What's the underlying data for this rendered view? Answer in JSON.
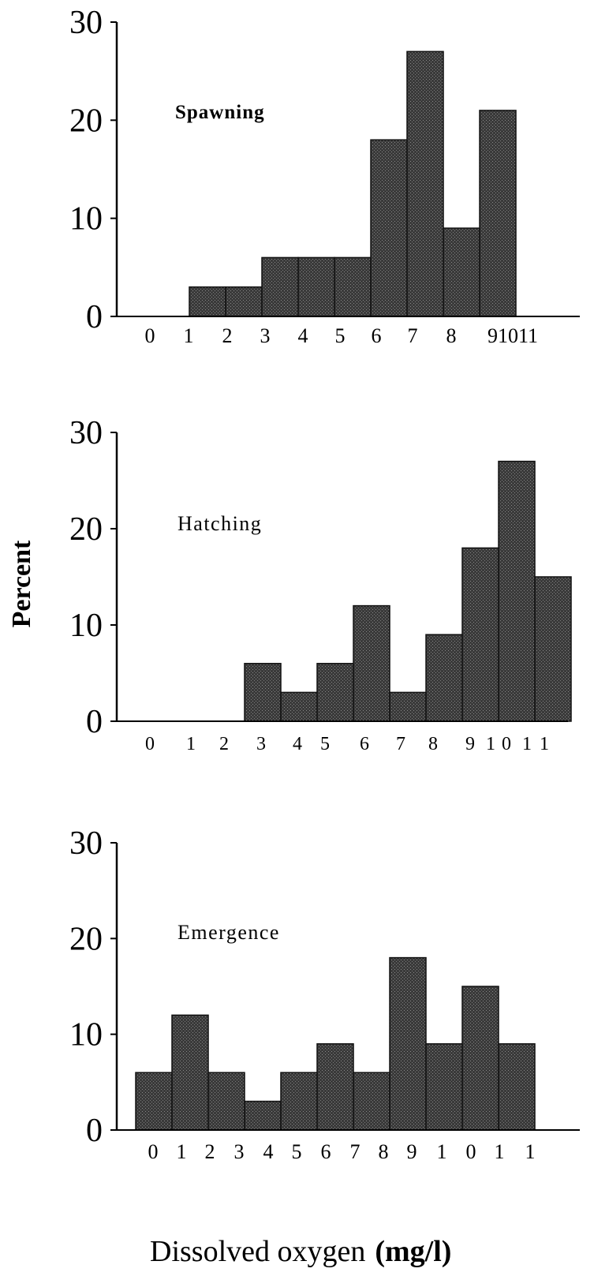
{
  "figure": {
    "ylabel": "Percent",
    "xlabel": "Dissolved oxygen",
    "xlabel_unit": "(mg/l)"
  },
  "colors": {
    "bar_fill": "#3a3a3a",
    "bar_stroke": "#111111",
    "axis": "#000000",
    "text": "#000000"
  },
  "chart_data": [
    {
      "type": "bar",
      "title": "Spawning",
      "categories": [
        "0",
        "1",
        "2",
        "3",
        "4",
        "5",
        "6",
        "7",
        "8",
        "9",
        "10",
        "11"
      ],
      "tick_labels": [
        "0",
        "1",
        "2",
        "3",
        "4",
        "5",
        "6",
        "7",
        "8",
        "91011"
      ],
      "values": [
        0,
        0,
        3,
        3,
        6,
        6,
        6,
        18,
        27,
        9,
        21,
        0
      ],
      "ylim": [
        0,
        30
      ],
      "yticks": [
        "0",
        "10",
        "20",
        "30"
      ]
    },
    {
      "type": "bar",
      "title": "Hatching",
      "categories": [
        "0",
        "1",
        "2",
        "3",
        "4",
        "5",
        "6",
        "7",
        "8",
        "9",
        "10",
        "11"
      ],
      "tick_labels": [
        "0",
        "1",
        "2",
        "3",
        "4",
        "5",
        "6",
        "7",
        "8",
        "9",
        "1",
        "0",
        "1",
        "1"
      ],
      "values": [
        0,
        0,
        0,
        6,
        3,
        6,
        12,
        3,
        9,
        18,
        27,
        15
      ],
      "ylim": [
        0,
        30
      ],
      "yticks": [
        "0",
        "10",
        "20",
        "30"
      ]
    },
    {
      "type": "bar",
      "title": "Emergence",
      "categories": [
        "0",
        "1",
        "2",
        "3",
        "4",
        "5",
        "6",
        "7",
        "8",
        "9",
        "10",
        "11"
      ],
      "tick_labels": [
        "0",
        "1",
        "2",
        "3",
        "4",
        "5",
        "6",
        "7",
        "8",
        "9",
        "1",
        "0",
        "1",
        "1"
      ],
      "values": [
        6,
        12,
        6,
        3,
        6,
        9,
        6,
        18,
        9,
        15,
        9,
        0
      ],
      "ylim": [
        0,
        30
      ],
      "yticks": [
        "0",
        "10",
        "20",
        "30"
      ]
    }
  ]
}
